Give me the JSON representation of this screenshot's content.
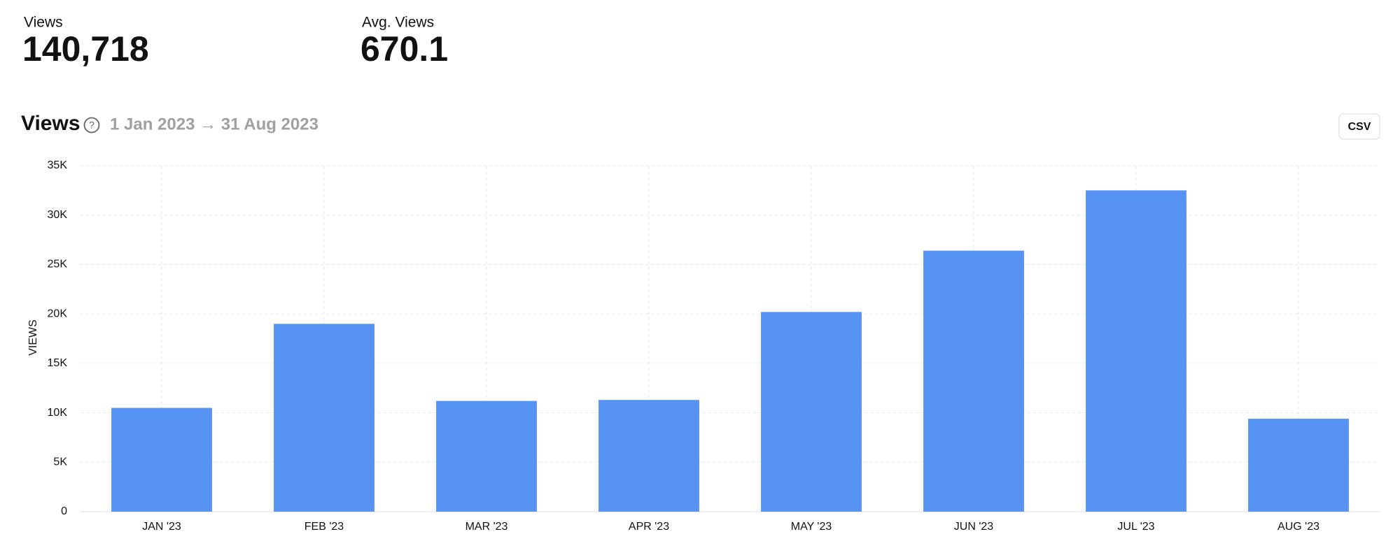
{
  "stats": [
    {
      "label": "Views",
      "value": "140,718"
    },
    {
      "label": "Avg. Views",
      "value": "670.1"
    }
  ],
  "csv_button": "CSV",
  "chart_data": {
    "type": "bar",
    "title": "Views",
    "subtitle": "1 Jan 2023 → 31 Aug 2023",
    "y_label": "VIEWS",
    "categories": [
      "JAN '23",
      "FEB '23",
      "MAR '23",
      "APR '23",
      "MAY '23",
      "JUN '23",
      "JUL '23",
      "AUG '23"
    ],
    "values": [
      10500,
      19000,
      11200,
      11300,
      20200,
      26400,
      32500,
      9400
    ],
    "color": "#5793f3",
    "ylim": [
      0,
      35000
    ],
    "yticks": [
      0,
      {
        "value": 5000,
        "label": "5K"
      },
      {
        "value": 10000,
        "label": "10K"
      },
      {
        "value": 15000,
        "label": "15K"
      },
      {
        "value": 20000,
        "label": "20K"
      },
      {
        "value": 25000,
        "label": "25K"
      },
      {
        "value": 30000,
        "label": "30K"
      },
      {
        "value": 35000,
        "label": "35K"
      }
    ],
    "grid": true
  }
}
